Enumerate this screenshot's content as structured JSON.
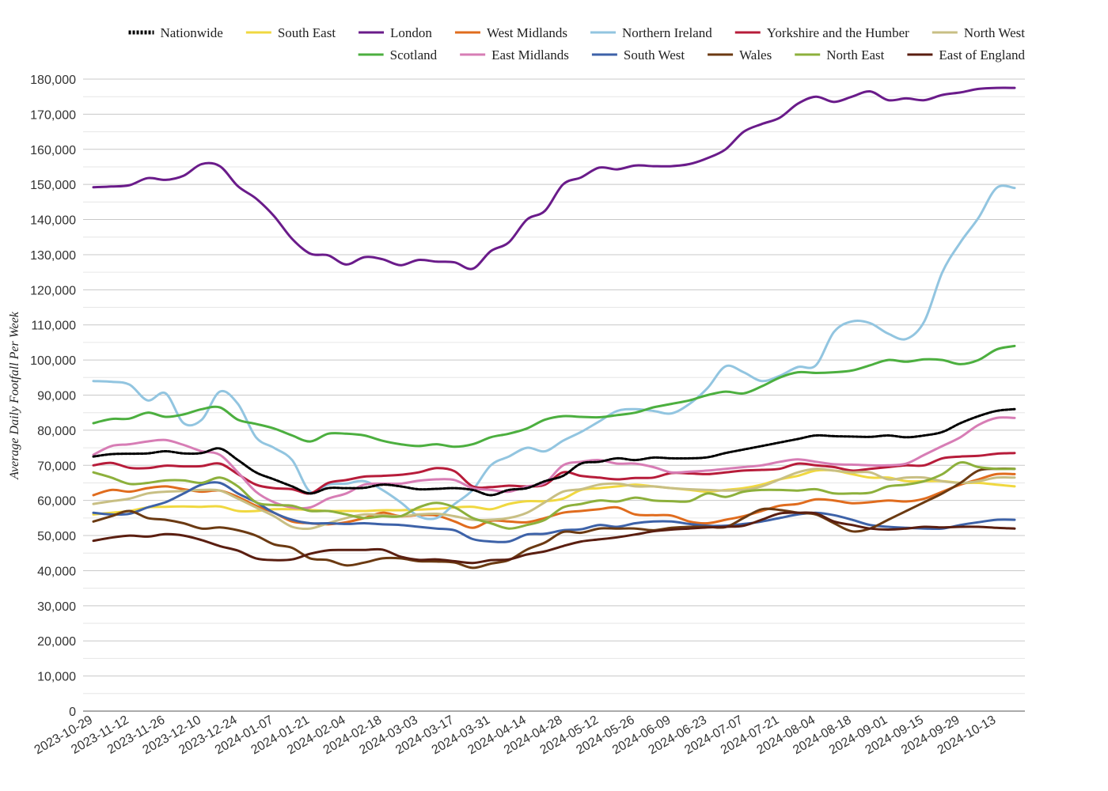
{
  "chart_data": {
    "type": "line",
    "title": "",
    "xlabel": "",
    "ylabel": "Average Daily Footfall Per Week",
    "ylim": [
      0,
      180000
    ],
    "ytick_values": [
      0,
      10000,
      20000,
      30000,
      40000,
      50000,
      60000,
      70000,
      80000,
      90000,
      100000,
      110000,
      120000,
      130000,
      140000,
      150000,
      160000,
      170000,
      180000
    ],
    "ytick_labels": [
      "0",
      "10,000",
      "20,000",
      "30,000",
      "40,000",
      "50,000",
      "60,000",
      "70,000",
      "80,000",
      "90,000",
      "100,000",
      "110,000",
      "120,000",
      "130,000",
      "140,000",
      "150,000",
      "160,000",
      "170,000",
      "180,000"
    ],
    "x_start": "2023-10-29",
    "x_step_days": 7,
    "xtick_labels": [
      "2023-10-29",
      "2023-11-12",
      "2023-11-26",
      "2023-12-10",
      "2023-12-24",
      "2024-01-07",
      "2024-01-21",
      "2024-02-04",
      "2024-02-18",
      "2024-03-03",
      "2024-03-17",
      "2024-03-31",
      "2024-04-14",
      "2024-04-28",
      "2024-05-12",
      "2024-05-26",
      "2024-06-09",
      "2024-06-23",
      "2024-07-07",
      "2024-07-21",
      "2024-08-04",
      "2024-08-18",
      "2024-09-01",
      "2024-09-15",
      "2024-09-29",
      "2024-10-13"
    ],
    "legend_position": "top",
    "grid": true,
    "series": [
      {
        "name": "Nationwide",
        "color": "#000000",
        "dashed": true,
        "values": [
          72500,
          73200,
          73300,
          73400,
          74000,
          73400,
          73500,
          74800,
          71500,
          68000,
          66000,
          64000,
          62000,
          63500,
          63500,
          63600,
          64500,
          64000,
          63200,
          63300,
          63500,
          63000,
          61500,
          63000,
          63500,
          65500,
          67000,
          70500,
          71000,
          72000,
          71500,
          72200,
          72000,
          72000,
          72300,
          73500,
          74500,
          75500,
          76500,
          77500,
          78500,
          78300,
          78200,
          78100,
          78500,
          78000,
          78500,
          79500,
          82000,
          84000,
          85500,
          86000
        ]
      },
      {
        "name": "South East",
        "color": "#f0d840",
        "values": [
          56000,
          56500,
          57000,
          58000,
          58200,
          58300,
          58200,
          58300,
          57000,
          57000,
          57500,
          57500,
          57300,
          57000,
          57000,
          57000,
          57200,
          57200,
          57400,
          57600,
          58000,
          58200,
          57500,
          59000,
          59800,
          59800,
          60500,
          63000,
          63500,
          64000,
          64500,
          64000,
          63500,
          63000,
          62500,
          63000,
          63500,
          64500,
          66000,
          67000,
          68500,
          68500,
          67500,
          66500,
          66500,
          65500,
          65500,
          65500,
          65000,
          65000,
          64500,
          64000
        ]
      },
      {
        "name": "London",
        "color": "#6a1b8a",
        "values": [
          149200,
          149400,
          149800,
          151800,
          151300,
          152500,
          155800,
          155200,
          149500,
          146000,
          141000,
          134500,
          130300,
          129800,
          127200,
          129300,
          128700,
          127000,
          128500,
          128000,
          127800,
          126000,
          131000,
          133500,
          140000,
          142500,
          150000,
          152000,
          154800,
          154300,
          155400,
          155200,
          155200,
          155800,
          157500,
          160000,
          165000,
          167200,
          169000,
          173000,
          175000,
          173500,
          175000,
          176500,
          174000,
          174500,
          174000,
          175500,
          176200,
          177200,
          177500,
          177500
        ]
      },
      {
        "name": "West Midlands",
        "color": "#e06c1e",
        "values": [
          61500,
          63000,
          62500,
          63500,
          64000,
          63200,
          62500,
          62800,
          61000,
          58500,
          56500,
          54000,
          53500,
          53200,
          53800,
          55000,
          56500,
          55500,
          55800,
          55700,
          54000,
          52200,
          54200,
          54000,
          53800,
          55000,
          56500,
          57000,
          57500,
          58000,
          56000,
          55800,
          55700,
          54000,
          53500,
          54500,
          55500,
          57000,
          58500,
          59000,
          60300,
          60000,
          59200,
          59500,
          60000,
          59700,
          60500,
          62500,
          64500,
          66000,
          67500,
          67500
        ]
      },
      {
        "name": "Northern Ireland",
        "color": "#92c5e0",
        "values": [
          94000,
          93800,
          93000,
          88500,
          90500,
          82000,
          83000,
          91000,
          87500,
          78000,
          75000,
          71500,
          62500,
          64500,
          64800,
          65500,
          63000,
          59500,
          55500,
          55000,
          59000,
          63000,
          70000,
          72500,
          75000,
          74000,
          77000,
          79500,
          82500,
          85500,
          86000,
          85500,
          84800,
          87500,
          92000,
          98200,
          96500,
          94000,
          95500,
          98000,
          98500,
          108000,
          111000,
          110500,
          107500,
          106000,
          111000,
          125000,
          133500,
          140500,
          149000,
          149000
        ]
      },
      {
        "name": "Yorkshire and the Humber",
        "color": "#b71c3a",
        "values": [
          70000,
          70700,
          69300,
          69200,
          69900,
          69700,
          69800,
          70500,
          67500,
          64500,
          63500,
          63200,
          62000,
          65000,
          65800,
          66800,
          67000,
          67300,
          68000,
          69200,
          68300,
          64000,
          63800,
          64200,
          64000,
          64500,
          68000,
          67000,
          66500,
          66000,
          66400,
          66500,
          67800,
          67700,
          67500,
          68000,
          68500,
          68700,
          69000,
          70500,
          70000,
          69500,
          68500,
          69000,
          69500,
          70000,
          70000,
          72000,
          72500,
          72700,
          73300,
          73500
        ]
      },
      {
        "name": "North West",
        "color": "#c8bf84",
        "values": [
          59000,
          59800,
          60500,
          62000,
          62500,
          62700,
          63000,
          62800,
          60500,
          58000,
          55500,
          52500,
          52000,
          53500,
          55000,
          56000,
          55800,
          55500,
          56000,
          56200,
          55500,
          54500,
          54500,
          55000,
          56500,
          59500,
          62500,
          63200,
          64500,
          64800,
          64000,
          64000,
          63500,
          63200,
          63000,
          62800,
          63000,
          64000,
          66000,
          68000,
          69000,
          68500,
          68000,
          68000,
          66000,
          66500,
          66500,
          65500,
          65000,
          65500,
          66500,
          66500
        ]
      },
      {
        "name": "Scotland",
        "color": "#4caf3f",
        "values": [
          82000,
          83200,
          83300,
          85000,
          83800,
          84500,
          86000,
          86500,
          83000,
          81800,
          80500,
          78500,
          76800,
          79000,
          79000,
          78500,
          77000,
          76000,
          75500,
          76000,
          75300,
          76000,
          78000,
          79000,
          80500,
          83000,
          84000,
          83800,
          83700,
          84300,
          85000,
          86500,
          87500,
          88500,
          90000,
          91000,
          90500,
          92500,
          95000,
          96500,
          96300,
          96500,
          97000,
          98500,
          100000,
          99500,
          100200,
          100000,
          98800,
          100000,
          103000,
          104000
        ]
      },
      {
        "name": "East Midlands",
        "color": "#d77db5",
        "values": [
          73000,
          75500,
          76000,
          76800,
          77200,
          75800,
          74000,
          73000,
          68000,
          62500,
          59500,
          58000,
          58000,
          60500,
          62000,
          64500,
          64800,
          64800,
          65600,
          66000,
          65800,
          63500,
          63000,
          62500,
          64000,
          65000,
          70000,
          71000,
          71500,
          70500,
          70500,
          69500,
          68000,
          68200,
          68500,
          69000,
          69500,
          70000,
          71000,
          71700,
          71000,
          70300,
          70200,
          70000,
          70000,
          70500,
          73000,
          75500,
          78000,
          81500,
          83500,
          83500
        ]
      },
      {
        "name": "South West",
        "color": "#3d62a8",
        "values": [
          56500,
          56000,
          56200,
          58000,
          59500,
          62000,
          64500,
          65000,
          62000,
          59500,
          56500,
          54500,
          53500,
          53500,
          53300,
          53500,
          53200,
          53000,
          52500,
          52000,
          51500,
          49000,
          48300,
          48300,
          50300,
          50500,
          51500,
          51800,
          53000,
          52500,
          53500,
          54000,
          54000,
          53300,
          52800,
          52800,
          53300,
          54000,
          55000,
          56000,
          56500,
          55800,
          54500,
          53000,
          52500,
          52200,
          52000,
          52000,
          53000,
          53800,
          54500,
          54500
        ]
      },
      {
        "name": "Wales",
        "color": "#6b3a12",
        "values": [
          54000,
          55500,
          57000,
          55000,
          54500,
          53500,
          52000,
          52300,
          51500,
          50000,
          47500,
          46500,
          43500,
          43000,
          41500,
          42300,
          43500,
          43500,
          42700,
          42600,
          42300,
          40800,
          42000,
          43000,
          46000,
          48000,
          51000,
          50800,
          52000,
          52000,
          52000,
          51500,
          52200,
          52500,
          52500,
          52400,
          55000,
          57500,
          57300,
          56500,
          56000,
          53500,
          51200,
          52000,
          54500,
          57000,
          59500,
          62000,
          65000,
          68500,
          69000,
          69000
        ]
      },
      {
        "name": "North East",
        "color": "#8db03c",
        "values": [
          68000,
          66500,
          64700,
          65000,
          65700,
          65700,
          65000,
          66500,
          64000,
          59500,
          58700,
          58500,
          57000,
          57000,
          56000,
          55000,
          55500,
          55500,
          58000,
          59300,
          58000,
          55000,
          53500,
          52000,
          53000,
          54500,
          58000,
          59000,
          60000,
          59700,
          60800,
          60000,
          59800,
          59800,
          62000,
          61000,
          62500,
          63000,
          63000,
          62800,
          63200,
          62000,
          62000,
          62200,
          64000,
          64500,
          65500,
          67500,
          70800,
          69500,
          69000,
          69000
        ]
      },
      {
        "name": "East of England",
        "color": "#5a1e10",
        "values": [
          48500,
          49400,
          50000,
          49700,
          50400,
          50000,
          48700,
          47000,
          45700,
          43500,
          43000,
          43200,
          44800,
          45800,
          45900,
          45900,
          46000,
          44000,
          43100,
          43200,
          42700,
          42200,
          43000,
          43200,
          44600,
          45500,
          47000,
          48300,
          48900,
          49500,
          50300,
          51200,
          51700,
          52000,
          52300,
          52500,
          52800,
          54500,
          56300,
          56500,
          56300,
          54000,
          53000,
          52000,
          51700,
          52000,
          52500,
          52300,
          52500,
          52500,
          52200,
          52000
        ]
      }
    ]
  }
}
